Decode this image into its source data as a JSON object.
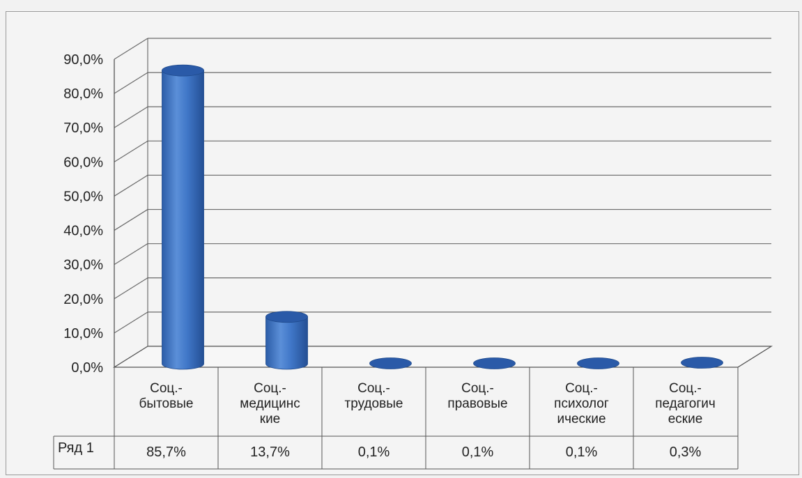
{
  "chart_data": {
    "type": "bar",
    "style": "3d-cylinder",
    "categories": [
      "Соц.-бытовые",
      "Соц.-медицинские",
      "Соц.-трудовые",
      "Соц.-правовые",
      "Соц.-психологические",
      "Соц.-педагогические"
    ],
    "category_label_lines": [
      [
        "Соц.-",
        "бытовые"
      ],
      [
        "Соц.-",
        "медицинс",
        "кие"
      ],
      [
        "Соц.-",
        "трудовые"
      ],
      [
        "Соц.-",
        "правовые"
      ],
      [
        "Соц.-",
        "психолог",
        "ические"
      ],
      [
        "Соц.-",
        "педагогич",
        "еские"
      ]
    ],
    "series": [
      {
        "name": "Ряд 1",
        "values": [
          85.7,
          13.7,
          0.1,
          0.1,
          0.1,
          0.3
        ],
        "value_labels": [
          "85,7%",
          "13,7%",
          "0,1%",
          "0,1%",
          "0,1%",
          "0,3%"
        ]
      }
    ],
    "ylim": [
      0,
      90
    ],
    "yticks": [
      "0,0%",
      "10,0%",
      "20,0%",
      "30,0%",
      "40,0%",
      "50,0%",
      "60,0%",
      "70,0%",
      "80,0%",
      "90,0%"
    ],
    "data_table": true,
    "grid": true,
    "bar_color": "#3d72c4",
    "bar_top_color": "#2a5aa8"
  }
}
